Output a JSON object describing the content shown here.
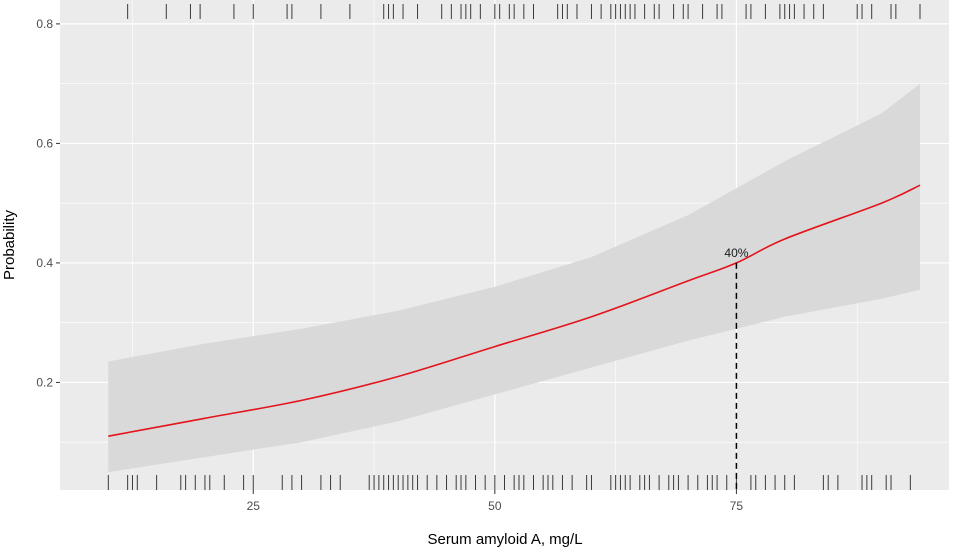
{
  "chart_data": {
    "type": "line",
    "title": "",
    "xlabel": "Serum amyloid A, mg/L",
    "ylabel": "Probability",
    "xlim": [
      5,
      97
    ],
    "ylim": [
      0.02,
      0.84
    ],
    "x_ticks": [
      25,
      50,
      75
    ],
    "x_tick_labels": [
      "25",
      "50",
      "75"
    ],
    "y_ticks": [
      0.2,
      0.4,
      0.6,
      0.8
    ],
    "y_tick_labels": [
      "0.2",
      "0.4",
      "0.6",
      "0.8"
    ],
    "grid": true,
    "legend": "none",
    "series": [
      {
        "type": "line",
        "color": "#e3141c",
        "x": [
          10,
          20,
          30,
          40,
          50,
          60,
          70,
          75,
          80,
          90,
          94
        ],
        "y": [
          0.11,
          0.14,
          0.17,
          0.21,
          0.26,
          0.31,
          0.37,
          0.4,
          0.44,
          0.5,
          0.53
        ]
      }
    ],
    "confidence_band": {
      "color": "#d9d9d9",
      "x": [
        10,
        20,
        30,
        40,
        50,
        60,
        70,
        75,
        80,
        90,
        94
      ],
      "lower": [
        0.05,
        0.075,
        0.1,
        0.135,
        0.18,
        0.225,
        0.27,
        0.29,
        0.31,
        0.34,
        0.355
      ],
      "upper": [
        0.235,
        0.265,
        0.29,
        0.32,
        0.36,
        0.41,
        0.48,
        0.525,
        0.57,
        0.65,
        0.7
      ]
    },
    "annotation": {
      "x": 75,
      "y": 0.4,
      "label": "40%",
      "line_style": "dashed",
      "color": "#000000"
    },
    "rug_top": [
      12,
      16,
      18.5,
      19.5,
      23,
      25,
      28.5,
      29,
      32,
      35,
      38.5,
      39,
      39.5,
      40.5,
      42,
      44.5,
      45.5,
      46.5,
      47,
      47.5,
      48.5,
      50,
      50.5,
      51.5,
      52,
      53,
      54,
      56.5,
      57,
      57.5,
      58.5,
      60,
      61,
      62,
      62.5,
      63,
      63.5,
      64,
      64.5,
      65.5,
      66.5,
      67,
      68.5,
      69.5,
      70,
      71.5,
      73,
      73.5,
      76,
      76.5,
      78,
      79.5,
      80,
      80.5,
      81,
      82,
      83,
      84,
      87.5,
      88,
      89,
      91,
      91.5,
      94
    ],
    "rug_bottom": [
      10,
      12,
      12.5,
      13,
      15,
      17.5,
      18,
      19,
      20,
      20.5,
      22,
      24,
      25,
      28,
      29,
      30,
      32,
      33,
      34,
      37,
      37.5,
      38,
      38.5,
      39,
      39.5,
      40,
      40.5,
      41,
      41.5,
      42,
      43,
      44,
      45,
      46,
      46.5,
      47,
      48,
      49,
      50,
      51,
      52,
      52.5,
      53,
      54,
      55,
      55.5,
      56,
      57,
      58,
      59.5,
      60,
      62,
      62.5,
      63,
      63.5,
      64,
      65,
      65.5,
      66,
      67,
      68,
      68.5,
      69,
      70,
      71,
      72,
      72.5,
      73,
      74,
      75,
      76.5,
      77,
      78,
      79,
      80,
      81,
      84,
      84.5,
      85.5,
      88,
      88.5,
      89,
      90.5,
      91,
      93
    ]
  }
}
